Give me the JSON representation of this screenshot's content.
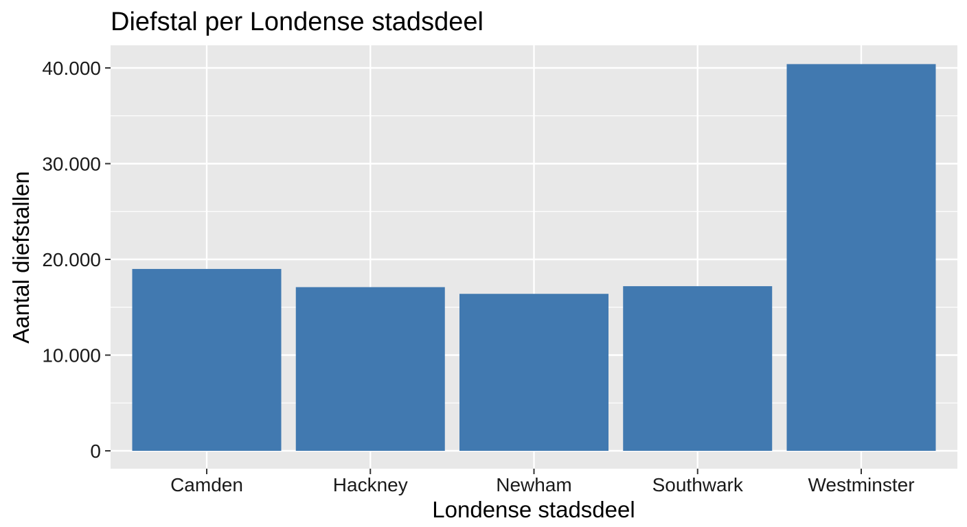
{
  "colors": {
    "panel_background": "#e8e8e8",
    "grid": "#ffffff",
    "bar_fill": "#4179b0",
    "tick": "#333333"
  },
  "chart_data": {
    "type": "bar",
    "title": "Diefstal per Londense stadsdeel",
    "xlabel": "Londense stadsdeel",
    "ylabel": "Aantal diefstallen",
    "categories": [
      "Camden",
      "Hackney",
      "Newham",
      "Southwark",
      "Westminster"
    ],
    "values": [
      19000,
      17100,
      16400,
      17200,
      40400
    ],
    "ylim": [
      0,
      42500
    ],
    "yticks": [
      0,
      10000,
      20000,
      30000,
      40000
    ],
    "ytick_labels": [
      "0",
      "10.000",
      "20.000",
      "30.000",
      "40.000"
    ],
    "grid": true,
    "legend": "none"
  }
}
